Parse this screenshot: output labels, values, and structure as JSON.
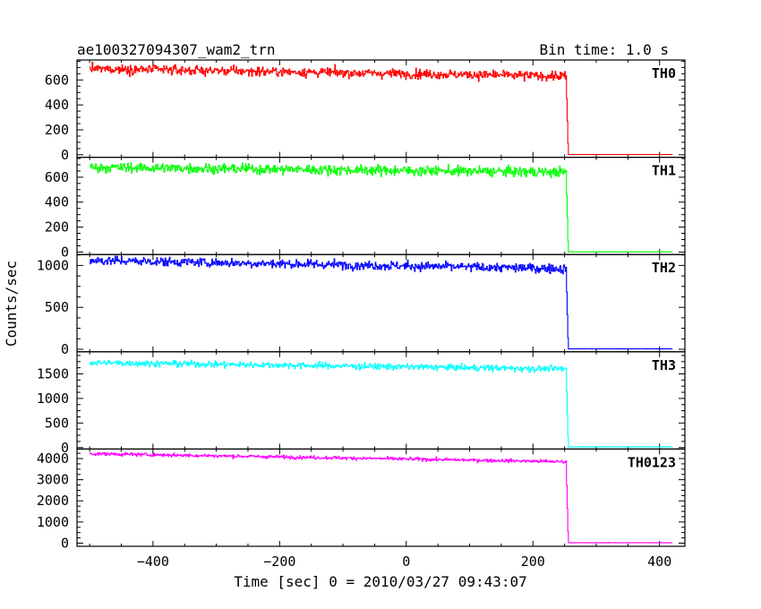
{
  "header": {
    "left": "ae100327094307_wam2_trn",
    "right": "Bin time: 1.0 s"
  },
  "chart_data": {
    "type": "line",
    "title": "ae100327094307_wam2_trn",
    "xlabel": "Time [sec] 0 = 2010/03/27 09:43:07",
    "ylabel": "Counts/sec",
    "xlim": [
      -520,
      440
    ],
    "x_ticks": [
      -400,
      -200,
      0,
      200,
      400
    ],
    "x_tick_labels": [
      "−400",
      "−200",
      "0",
      "200",
      "400"
    ],
    "bin_time_s": 1.0,
    "x_start": -500,
    "x_end": 420,
    "step_time": 253,
    "grid": false,
    "panels": [
      {
        "name": "TH0",
        "color": "#ff0000",
        "ylim": [
          -20,
          760
        ],
        "y_ticks": [
          0,
          200,
          400,
          600
        ],
        "y_tick_labels": [
          "0",
          "200",
          "400",
          "600"
        ],
        "level_start": 690,
        "level_end": 630,
        "noise": 26,
        "post_level": 2,
        "values": [
          [
            -500,
            690
          ],
          [
            -400,
            683
          ],
          [
            -300,
            677
          ],
          [
            -200,
            670
          ],
          [
            -100,
            663
          ],
          [
            0,
            657
          ],
          [
            100,
            650
          ],
          [
            200,
            643
          ],
          [
            250,
            630
          ],
          [
            253,
            630
          ],
          [
            258,
            2
          ],
          [
            420,
            2
          ]
        ]
      },
      {
        "name": "TH1",
        "color": "#00ff00",
        "ylim": [
          -20,
          760
        ],
        "y_ticks": [
          0,
          200,
          400,
          600
        ],
        "y_tick_labels": [
          "0",
          "200",
          "400",
          "600"
        ],
        "level_start": 680,
        "level_end": 640,
        "noise": 28,
        "post_level": 2,
        "values": [
          [
            -500,
            680
          ],
          [
            -400,
            675
          ],
          [
            -300,
            671
          ],
          [
            -200,
            666
          ],
          [
            -100,
            662
          ],
          [
            0,
            657
          ],
          [
            100,
            653
          ],
          [
            200,
            648
          ],
          [
            250,
            640
          ],
          [
            253,
            640
          ],
          [
            258,
            2
          ],
          [
            420,
            2
          ]
        ]
      },
      {
        "name": "TH2",
        "color": "#0000ff",
        "ylim": [
          -30,
          1130
        ],
        "y_ticks": [
          0,
          500,
          1000
        ],
        "y_tick_labels": [
          "0",
          "500",
          "1000"
        ],
        "level_start": 1060,
        "level_end": 960,
        "noise": 38,
        "post_level": 5,
        "values": [
          [
            -500,
            1060
          ],
          [
            -400,
            1049
          ],
          [
            -300,
            1038
          ],
          [
            -200,
            1027
          ],
          [
            -100,
            1016
          ],
          [
            0,
            1005
          ],
          [
            100,
            994
          ],
          [
            200,
            983
          ],
          [
            250,
            960
          ],
          [
            253,
            960
          ],
          [
            258,
            5
          ],
          [
            420,
            5
          ]
        ]
      },
      {
        "name": "TH3",
        "color": "#00ffff",
        "ylim": [
          -30,
          1950
        ],
        "y_ticks": [
          0,
          500,
          1000,
          1500
        ],
        "y_tick_labels": [
          "0",
          "500",
          "1000",
          "1500"
        ],
        "level_start": 1730,
        "level_end": 1600,
        "noise": 45,
        "post_level": 15,
        "values": [
          [
            -500,
            1730
          ],
          [
            -400,
            1716
          ],
          [
            -300,
            1702
          ],
          [
            -200,
            1688
          ],
          [
            -100,
            1673
          ],
          [
            0,
            1659
          ],
          [
            100,
            1645
          ],
          [
            200,
            1631
          ],
          [
            250,
            1600
          ],
          [
            253,
            1600
          ],
          [
            258,
            15
          ],
          [
            420,
            15
          ]
        ]
      },
      {
        "name": "TH0123",
        "color": "#ff00ff",
        "ylim": [
          -150,
          4450
        ],
        "y_ticks": [
          0,
          1000,
          2000,
          3000,
          4000
        ],
        "y_tick_labels": [
          "0",
          "1000",
          "2000",
          "3000",
          "4000"
        ],
        "level_start": 4230,
        "level_end": 3850,
        "noise": 55,
        "post_level": 20,
        "values": [
          [
            -500,
            4230
          ],
          [
            -400,
            4189
          ],
          [
            -300,
            4147
          ],
          [
            -200,
            4106
          ],
          [
            -100,
            4065
          ],
          [
            0,
            4023
          ],
          [
            100,
            3982
          ],
          [
            200,
            3941
          ],
          [
            250,
            3850
          ],
          [
            253,
            3850
          ],
          [
            258,
            20
          ],
          [
            420,
            20
          ]
        ]
      }
    ]
  }
}
